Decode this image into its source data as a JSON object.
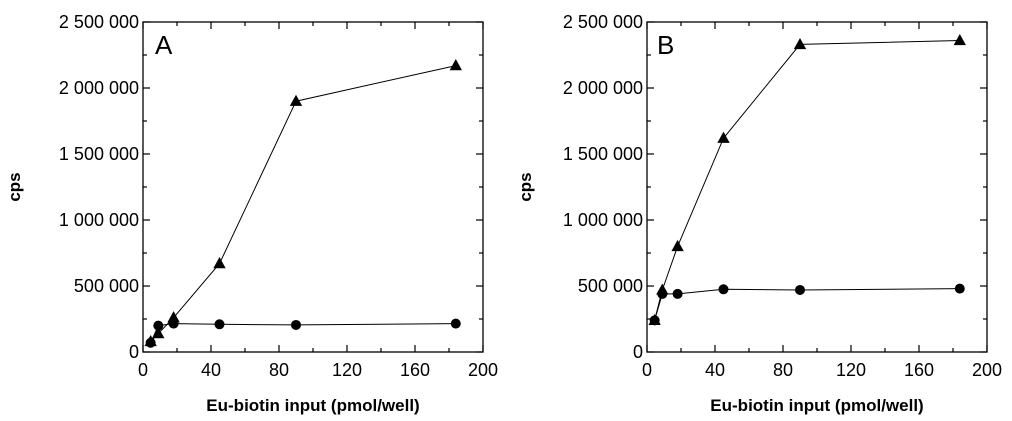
{
  "chart_data": [
    {
      "type": "line",
      "panel_label": "A",
      "xlabel": "Eu-biotin input (pmol/well)",
      "ylabel": "cps",
      "xlim": [
        0,
        200
      ],
      "ylim": [
        0,
        2500000
      ],
      "xticks": [
        0,
        40,
        80,
        120,
        160,
        200
      ],
      "xtick_labels": [
        "0",
        "40",
        "80",
        "120",
        "160",
        "200"
      ],
      "yticks": [
        0,
        500000,
        1000000,
        1500000,
        2000000,
        2500000
      ],
      "ytick_labels": [
        "0",
        "500 000",
        "1 000 000",
        "1 500 000",
        "2 000 000",
        "2 500 000"
      ],
      "grid": false,
      "series": [
        {
          "marker": "triangle",
          "x": [
            4.5,
            9,
            18,
            45,
            90,
            184
          ],
          "y": [
            80000,
            140000,
            260000,
            670000,
            1900000,
            2170000
          ]
        },
        {
          "marker": "circle",
          "x": [
            4.5,
            9,
            18,
            45,
            90,
            184
          ],
          "y": [
            70000,
            200000,
            215000,
            210000,
            205000,
            215000
          ]
        }
      ]
    },
    {
      "type": "line",
      "panel_label": "B",
      "xlabel": "Eu-biotin input (pmol/well)",
      "ylabel": "cps",
      "xlim": [
        0,
        200
      ],
      "ylim": [
        0,
        2500000
      ],
      "xticks": [
        0,
        40,
        80,
        120,
        160,
        200
      ],
      "xtick_labels": [
        "0",
        "40",
        "80",
        "120",
        "160",
        "200"
      ],
      "yticks": [
        0,
        500000,
        1000000,
        1500000,
        2000000,
        2500000
      ],
      "ytick_labels": [
        "0",
        "500 000",
        "1 000 000",
        "1 500 000",
        "2 000 000",
        "2 500 000"
      ],
      "grid": false,
      "series": [
        {
          "marker": "triangle",
          "x": [
            4.5,
            9,
            18,
            45,
            90,
            184
          ],
          "y": [
            240000,
            470000,
            800000,
            1620000,
            2330000,
            2360000
          ]
        },
        {
          "marker": "circle",
          "x": [
            4.5,
            9,
            18,
            45,
            90,
            184
          ],
          "y": [
            240000,
            440000,
            440000,
            475000,
            470000,
            480000
          ]
        }
      ]
    }
  ]
}
